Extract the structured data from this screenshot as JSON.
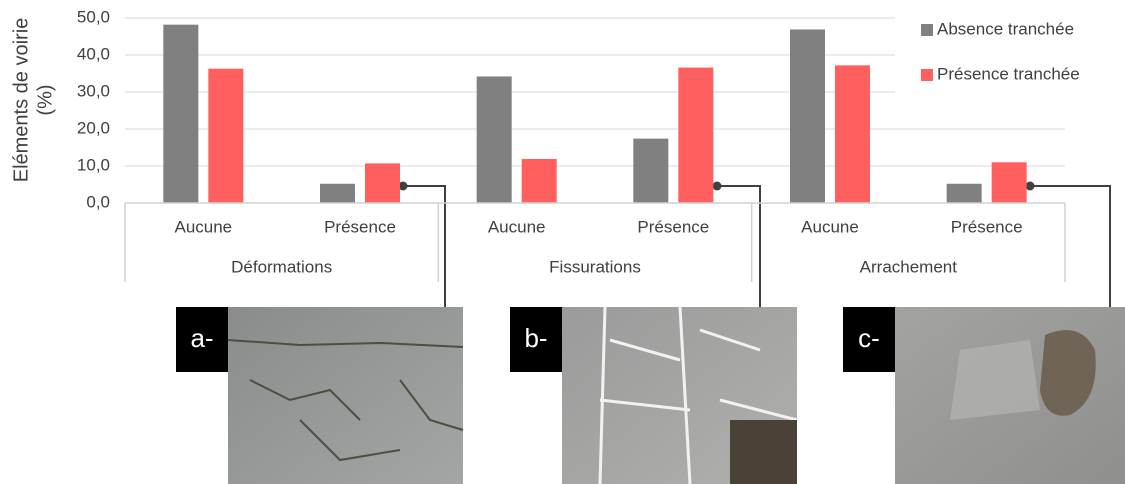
{
  "chart_data": {
    "type": "bar",
    "ylabel": [
      "Eléments de voirie",
      "(%)"
    ],
    "categories": [
      "Aucune",
      "Présence",
      "Aucune",
      "Présence",
      "Aucune",
      "Présence"
    ],
    "category_groups": [
      "Déformations",
      "Fissurations",
      "Arrachement"
    ],
    "series": [
      {
        "name": "Absence tranchée",
        "color": "#808080",
        "values": [
          48.2,
          5.2,
          34.2,
          17.4,
          46.9,
          5.2
        ]
      },
      {
        "name": "Présence tranchée",
        "color": "#ff5f5f",
        "values": [
          36.3,
          10.7,
          11.9,
          36.6,
          37.2,
          11.0
        ]
      }
    ],
    "ylim": [
      0,
      50
    ],
    "yticks": [
      {
        "value": 0,
        "label": "0,0"
      },
      {
        "value": 10,
        "label": "10,0"
      },
      {
        "value": 20,
        "label": "20,0"
      },
      {
        "value": 30,
        "label": "30,0"
      },
      {
        "value": 40,
        "label": "40,0"
      },
      {
        "value": 50,
        "label": "50,0"
      }
    ],
    "grid": true,
    "legend": "upper right",
    "photo_labels": [
      "a-",
      "b-",
      "c-"
    ]
  }
}
